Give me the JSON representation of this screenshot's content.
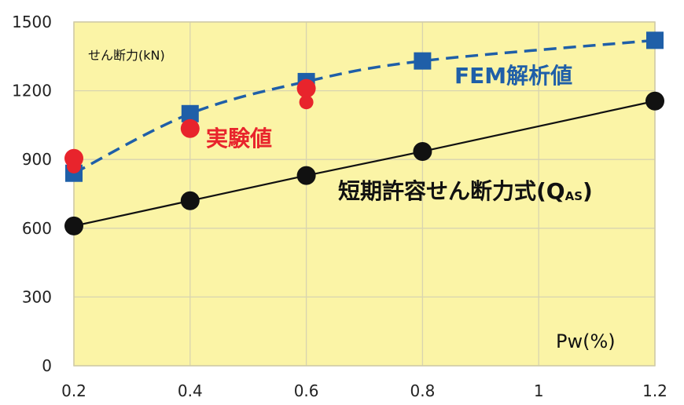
{
  "chart_data": {
    "type": "line",
    "x_ticks": [
      "0.2",
      "0.4",
      "0.6",
      "0.8",
      "1",
      "1.2"
    ],
    "y_ticks": [
      "0",
      "300",
      "600",
      "900",
      "1200",
      "1500"
    ],
    "xlim": [
      0.2,
      1.2
    ],
    "ylim": [
      0,
      1500
    ],
    "ylabel": "せん断力(kN)",
    "xlabel": "Pw(%)",
    "grid": true,
    "background": "#FBF4A6",
    "series": [
      {
        "name": "FEM解析値",
        "label_text": "FEM解析値",
        "color": "#1F5FA8",
        "marker": "square",
        "line": "dashed",
        "x": [
          0.2,
          0.4,
          0.6,
          0.8,
          1.2
        ],
        "y": [
          840,
          1100,
          1240,
          1330,
          1420
        ]
      },
      {
        "name": "実験値",
        "label_text": "実験値",
        "color": "#E8242C",
        "marker": "circle",
        "line": "none",
        "x": [
          0.2,
          0.2,
          0.4,
          0.6,
          0.6
        ],
        "y": [
          905,
          870,
          1035,
          1210,
          1150
        ]
      },
      {
        "name": "短期許容せん断力式",
        "label_text": "短期許容せん断力式(Q",
        "label_sub": "AS",
        "label_close": ")",
        "color": "#111111",
        "marker": "circle",
        "line": "solid",
        "x": [
          0.2,
          0.4,
          0.6,
          0.8,
          1.2
        ],
        "y": [
          610,
          720,
          830,
          935,
          1155
        ]
      }
    ]
  }
}
